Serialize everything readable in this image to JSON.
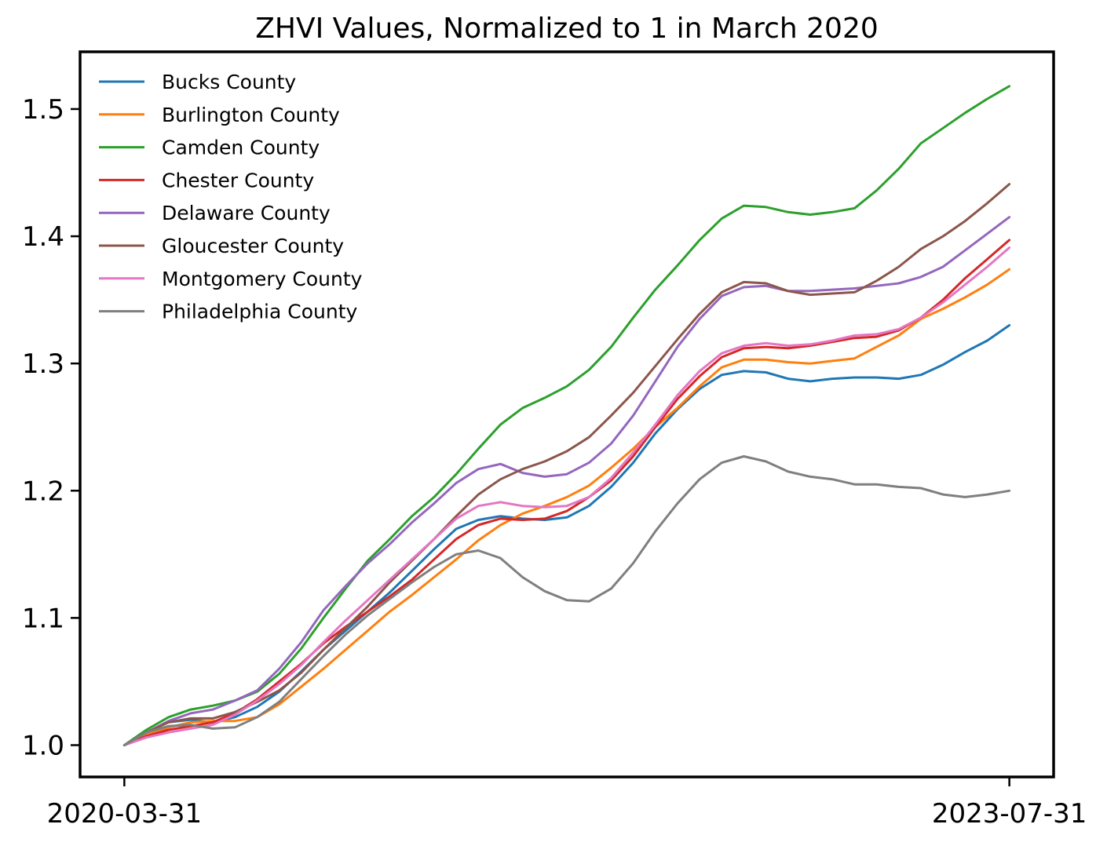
{
  "chart_data": {
    "type": "line",
    "title": "ZHVI Values, Normalized to 1 in March 2020",
    "xlabel": "",
    "ylabel": "",
    "x_start_label": "2020-03-31",
    "x_end_label": "2023-07-31",
    "xlim": [
      -2,
      42
    ],
    "ylim": [
      0.975,
      1.545
    ],
    "yticks": [
      1.0,
      1.1,
      1.2,
      1.3,
      1.4,
      1.5
    ],
    "ytick_labels": [
      "1.0",
      "1.1",
      "1.2",
      "1.3",
      "1.4",
      "1.5"
    ],
    "xticks": [
      0,
      40
    ],
    "xtick_labels": [
      "2020-03-31",
      "2023-07-31"
    ],
    "legend_position": "top-left",
    "grid": false,
    "series": [
      {
        "name": "Bucks County",
        "color": "#1f77b4",
        "values": [
          1.0,
          1.01,
          1.018,
          1.02,
          1.018,
          1.022,
          1.03,
          1.042,
          1.058,
          1.075,
          1.09,
          1.105,
          1.12,
          1.137,
          1.154,
          1.17,
          1.177,
          1.18,
          1.178,
          1.177,
          1.179,
          1.188,
          1.203,
          1.222,
          1.245,
          1.264,
          1.28,
          1.291,
          1.294,
          1.293,
          1.288,
          1.286,
          1.288,
          1.289,
          1.289,
          1.288,
          1.291,
          1.299,
          1.309,
          1.318,
          1.33
        ]
      },
      {
        "name": "Burlington County",
        "color": "#ff7f0e",
        "values": [
          1.0,
          1.008,
          1.014,
          1.018,
          1.019,
          1.019,
          1.022,
          1.032,
          1.046,
          1.06,
          1.075,
          1.09,
          1.105,
          1.118,
          1.132,
          1.146,
          1.161,
          1.173,
          1.182,
          1.188,
          1.195,
          1.204,
          1.218,
          1.233,
          1.25,
          1.265,
          1.282,
          1.297,
          1.303,
          1.303,
          1.301,
          1.3,
          1.302,
          1.304,
          1.313,
          1.322,
          1.335,
          1.343,
          1.352,
          1.362,
          1.374
        ]
      },
      {
        "name": "Camden County",
        "color": "#2ca02c",
        "values": [
          1.0,
          1.012,
          1.022,
          1.028,
          1.031,
          1.035,
          1.042,
          1.056,
          1.076,
          1.1,
          1.123,
          1.145,
          1.162,
          1.18,
          1.195,
          1.213,
          1.233,
          1.252,
          1.265,
          1.273,
          1.282,
          1.295,
          1.313,
          1.336,
          1.358,
          1.377,
          1.397,
          1.414,
          1.424,
          1.423,
          1.419,
          1.417,
          1.419,
          1.422,
          1.436,
          1.453,
          1.473,
          1.485,
          1.497,
          1.508,
          1.518
        ]
      },
      {
        "name": "Chester County",
        "color": "#d62728",
        "values": [
          1.0,
          1.007,
          1.012,
          1.015,
          1.018,
          1.025,
          1.036,
          1.05,
          1.064,
          1.08,
          1.093,
          1.105,
          1.117,
          1.13,
          1.146,
          1.162,
          1.173,
          1.178,
          1.177,
          1.178,
          1.184,
          1.195,
          1.208,
          1.227,
          1.25,
          1.272,
          1.29,
          1.305,
          1.312,
          1.313,
          1.312,
          1.314,
          1.317,
          1.32,
          1.321,
          1.326,
          1.336,
          1.35,
          1.367,
          1.382,
          1.397
        ]
      },
      {
        "name": "Delaware County",
        "color": "#9467bd",
        "values": [
          1.0,
          1.01,
          1.019,
          1.025,
          1.028,
          1.035,
          1.043,
          1.06,
          1.081,
          1.106,
          1.125,
          1.143,
          1.158,
          1.175,
          1.19,
          1.206,
          1.217,
          1.221,
          1.214,
          1.211,
          1.213,
          1.222,
          1.237,
          1.259,
          1.286,
          1.313,
          1.335,
          1.353,
          1.36,
          1.361,
          1.357,
          1.357,
          1.358,
          1.359,
          1.361,
          1.363,
          1.368,
          1.376,
          1.389,
          1.402,
          1.415
        ]
      },
      {
        "name": "Gloucester County",
        "color": "#8c564b",
        "values": [
          1.0,
          1.01,
          1.018,
          1.021,
          1.021,
          1.026,
          1.034,
          1.043,
          1.057,
          1.075,
          1.092,
          1.109,
          1.128,
          1.145,
          1.162,
          1.18,
          1.197,
          1.209,
          1.217,
          1.223,
          1.231,
          1.242,
          1.259,
          1.277,
          1.298,
          1.319,
          1.339,
          1.356,
          1.364,
          1.363,
          1.357,
          1.354,
          1.355,
          1.356,
          1.365,
          1.376,
          1.39,
          1.4,
          1.412,
          1.426,
          1.441
        ]
      },
      {
        "name": "Montgomery County",
        "color": "#e377c2",
        "values": [
          1.0,
          1.006,
          1.01,
          1.013,
          1.016,
          1.024,
          1.035,
          1.048,
          1.063,
          1.081,
          1.098,
          1.114,
          1.13,
          1.146,
          1.162,
          1.178,
          1.188,
          1.191,
          1.188,
          1.187,
          1.188,
          1.195,
          1.21,
          1.23,
          1.252,
          1.275,
          1.294,
          1.308,
          1.314,
          1.316,
          1.314,
          1.315,
          1.318,
          1.322,
          1.323,
          1.327,
          1.336,
          1.348,
          1.362,
          1.376,
          1.391
        ]
      },
      {
        "name": "Philadelphia County",
        "color": "#7f7f7f",
        "values": [
          1.0,
          1.01,
          1.015,
          1.016,
          1.013,
          1.014,
          1.022,
          1.034,
          1.052,
          1.07,
          1.087,
          1.102,
          1.115,
          1.128,
          1.14,
          1.15,
          1.153,
          1.147,
          1.132,
          1.121,
          1.114,
          1.113,
          1.123,
          1.143,
          1.168,
          1.19,
          1.209,
          1.222,
          1.227,
          1.223,
          1.215,
          1.211,
          1.209,
          1.205,
          1.205,
          1.203,
          1.202,
          1.197,
          1.195,
          1.197,
          1.2
        ]
      }
    ]
  }
}
